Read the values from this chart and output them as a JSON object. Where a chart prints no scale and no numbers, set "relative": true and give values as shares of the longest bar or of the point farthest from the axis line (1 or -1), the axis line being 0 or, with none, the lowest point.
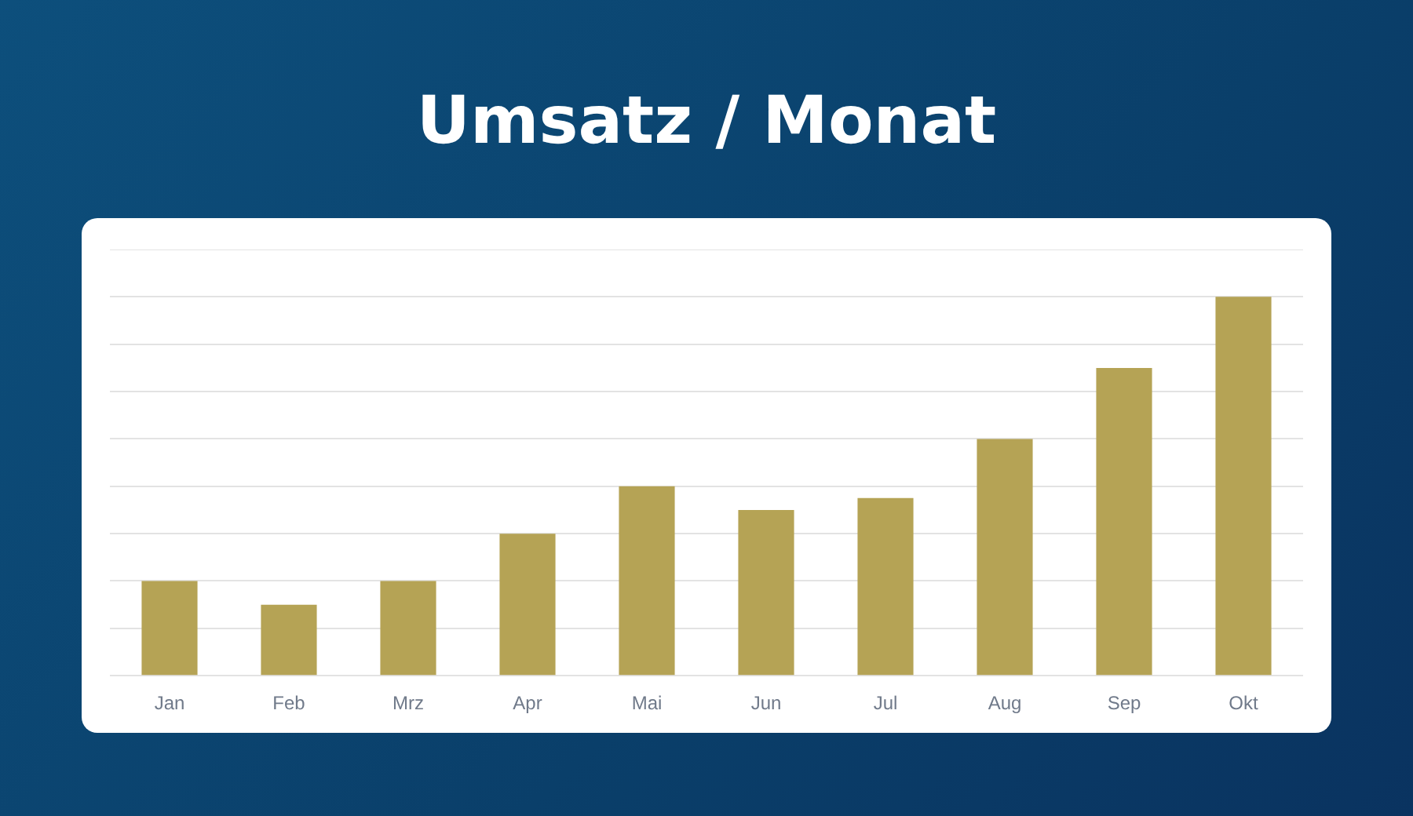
{
  "chart_data": {
    "type": "bar",
    "title": "Umsatz / Monat",
    "categories": [
      "Jan",
      "Feb",
      "Mrz",
      "Apr",
      "Mai",
      "Jun",
      "Jul",
      "Aug",
      "Sep",
      "Okt"
    ],
    "values": [
      0.25,
      0.1875,
      0.25,
      0.375,
      0.5,
      0.4375,
      0.46875,
      0.625,
      0.8125,
      1
    ],
    "color": "#b5a355",
    "relative": true,
    "grid": "y",
    "tick_labels": "x"
  }
}
